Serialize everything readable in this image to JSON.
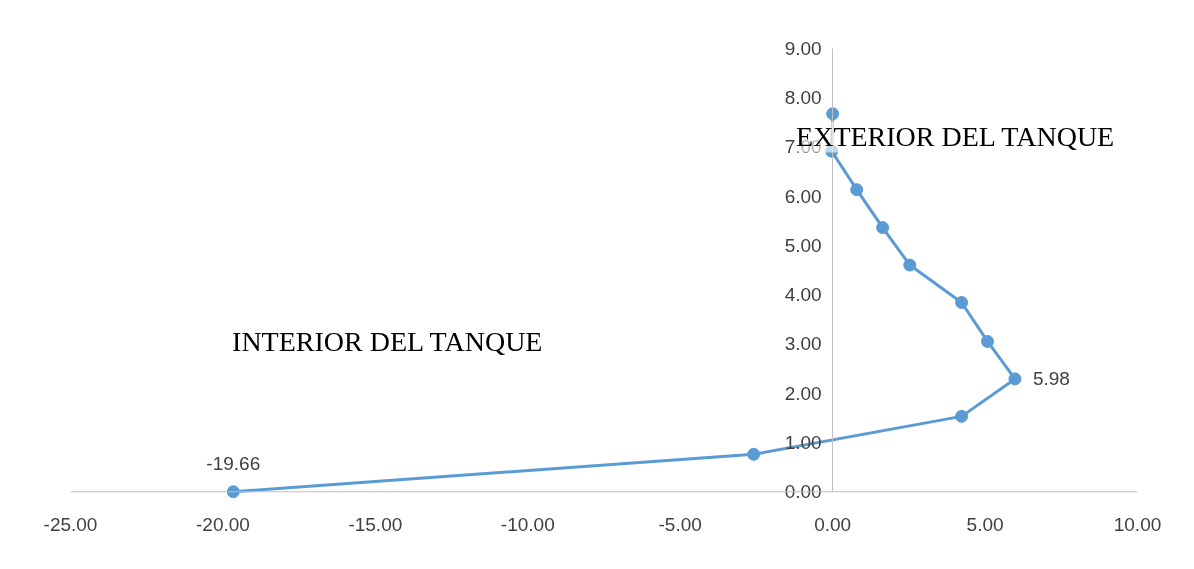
{
  "chart_data": {
    "type": "line",
    "x": [
      -19.66,
      -2.59,
      4.23,
      5.98,
      5.08,
      4.23,
      2.53,
      1.64,
      0.79,
      -0.03,
      0.0
    ],
    "series": [
      {
        "color": "#5b9bd5",
        "values": [
          0.0,
          0.76,
          1.53,
          2.29,
          3.05,
          3.84,
          4.6,
          5.36,
          6.13,
          6.91,
          7.67
        ]
      }
    ],
    "xlim": [
      -25,
      10
    ],
    "ylim": [
      0,
      9
    ],
    "xticks": [
      {
        "value": -25,
        "label": "-25.00"
      },
      {
        "value": -20,
        "label": "-20.00"
      },
      {
        "value": -15,
        "label": "-15.00"
      },
      {
        "value": -10,
        "label": "-10.00"
      },
      {
        "value": -5,
        "label": "-5.00"
      },
      {
        "value": 0,
        "label": "0.00"
      },
      {
        "value": 5,
        "label": "5.00"
      },
      {
        "value": 10,
        "label": "10.00"
      }
    ],
    "yticks": [
      {
        "value": 0,
        "label": "0.00"
      },
      {
        "value": 1,
        "label": "1.00"
      },
      {
        "value": 2,
        "label": "2.00"
      },
      {
        "value": 3,
        "label": "3.00"
      },
      {
        "value": 4,
        "label": "4.00"
      },
      {
        "value": 5,
        "label": "5.00"
      },
      {
        "value": 6,
        "label": "6.00"
      },
      {
        "value": 7,
        "label": "7.00"
      },
      {
        "value": 8,
        "label": "8.00"
      },
      {
        "value": 9,
        "label": "9.00"
      }
    ],
    "annotations": [
      "EXTERIOR DEL TANQUE",
      "INTERIOR DEL TANQUE",
      {
        "text": "-19.66",
        "x": -19.66,
        "y": 0.0
      },
      {
        "text": "5.98",
        "x": 5.98,
        "y": 2.29
      }
    ],
    "grid": false,
    "marker": "circle",
    "line_style": "solid"
  }
}
